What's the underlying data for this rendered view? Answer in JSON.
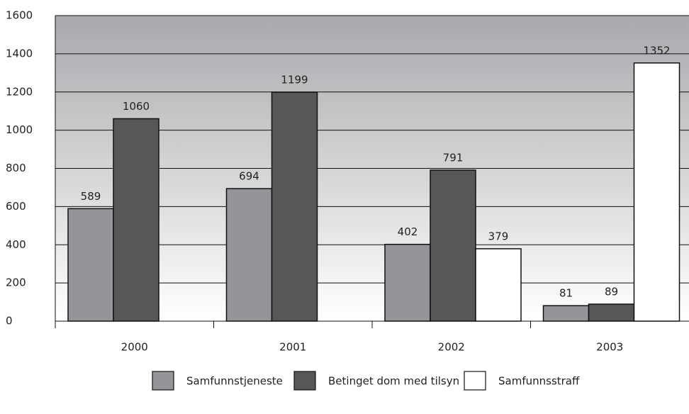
{
  "chart_data": {
    "type": "bar",
    "categories": [
      "2000",
      "2001",
      "2002",
      "2003"
    ],
    "series": [
      {
        "name": "Samfunnstjeneste",
        "color": "#959599",
        "values": [
          589,
          694,
          402,
          81
        ]
      },
      {
        "name": "Betinget dom med tilsyn",
        "color": "#57575a",
        "values": [
          1060,
          1199,
          791,
          89
        ]
      },
      {
        "name": "Samfunnsstraff",
        "color": "#ffffff",
        "values": [
          null,
          null,
          379,
          1352
        ]
      }
    ],
    "ylim": [
      0,
      1600
    ],
    "yticks": [
      0,
      200,
      400,
      600,
      800,
      1000,
      1200,
      1400,
      1600
    ],
    "grid": true,
    "legend": "bottom"
  }
}
